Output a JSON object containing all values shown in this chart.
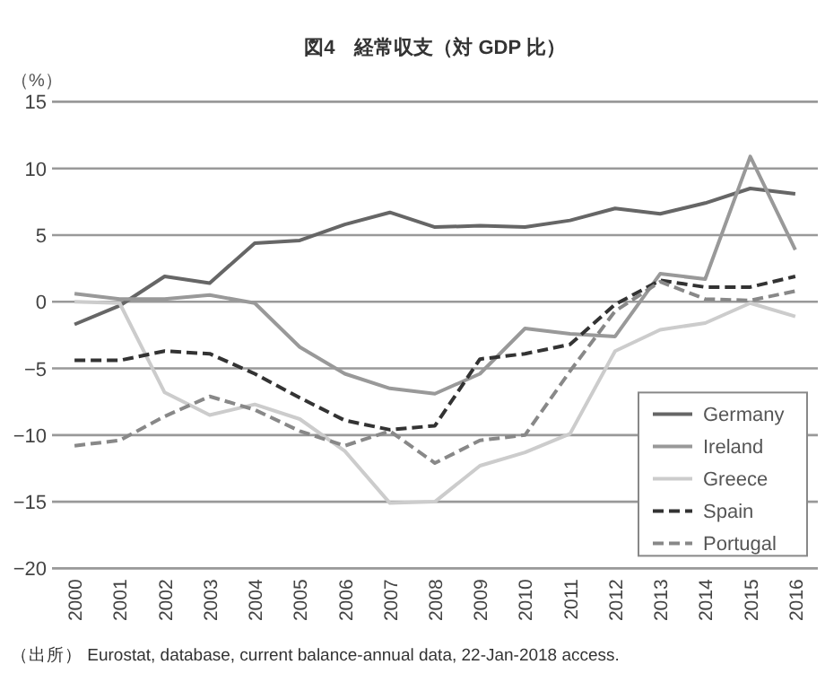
{
  "chart_data": {
    "type": "line",
    "title": "図4　経常収支（対 GDP 比）",
    "ylabel": "（%）",
    "annotations": [
      "（出所） Eurostat, database, current balance-annual data, 22-Jan-2018 access."
    ],
    "categories": [
      "2000",
      "2001",
      "2002",
      "2003",
      "2004",
      "2005",
      "2006",
      "2007",
      "2008",
      "2009",
      "2010",
      "2011",
      "2012",
      "2013",
      "2014",
      "2015",
      "2016"
    ],
    "series": [
      {
        "name": "Germany",
        "color": "#666666",
        "line_style": "solid",
        "values": [
          -1.7,
          -0.3,
          1.9,
          1.4,
          4.4,
          4.6,
          5.8,
          6.7,
          5.6,
          5.7,
          5.6,
          6.1,
          7.0,
          6.6,
          7.4,
          8.5,
          8.1
        ]
      },
      {
        "name": "Ireland",
        "color": "#999999",
        "line_style": "solid",
        "values": [
          0.6,
          0.2,
          0.2,
          0.5,
          -0.1,
          -3.4,
          -5.4,
          -6.5,
          -6.9,
          -5.4,
          -2.0,
          -2.4,
          -2.6,
          2.1,
          1.7,
          10.9,
          3.9
        ]
      },
      {
        "name": "Greece",
        "color": "#cccccc",
        "line_style": "solid",
        "values": [
          0.0,
          -0.1,
          -6.8,
          -8.5,
          -7.7,
          -8.8,
          -11.2,
          -15.1,
          -15.0,
          -12.3,
          -11.3,
          -9.9,
          -3.7,
          -2.1,
          -1.6,
          -0.1,
          -1.1
        ]
      },
      {
        "name": "Spain",
        "color": "#333333",
        "line_style": "dashed",
        "values": [
          -4.4,
          -4.4,
          -3.7,
          -3.9,
          -5.4,
          -7.2,
          -8.9,
          -9.6,
          -9.3,
          -4.3,
          -3.9,
          -3.2,
          -0.2,
          1.6,
          1.1,
          1.1,
          1.9
        ]
      },
      {
        "name": "Portugal",
        "color": "#888888",
        "line_style": "dashed",
        "values": [
          -10.8,
          -10.4,
          -8.6,
          -7.1,
          -8.1,
          -9.7,
          -10.8,
          -9.7,
          -12.1,
          -10.4,
          -10.0,
          -5.2,
          -0.7,
          1.5,
          0.2,
          0.1,
          0.8
        ]
      }
    ],
    "ylim": [
      -20,
      15
    ],
    "yticks": [
      {
        "value": -20,
        "label": "−20"
      },
      {
        "value": -15,
        "label": "−15"
      },
      {
        "value": -10,
        "label": "−10"
      },
      {
        "value": -5,
        "label": "−5"
      },
      0,
      5,
      10,
      15
    ],
    "grid": "y",
    "legend": "bottom right",
    "marker": "none"
  }
}
